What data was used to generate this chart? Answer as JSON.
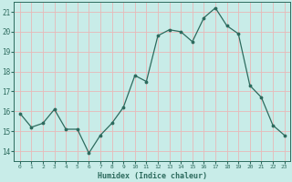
{
  "x": [
    0,
    1,
    2,
    3,
    4,
    5,
    6,
    7,
    8,
    9,
    10,
    11,
    12,
    13,
    14,
    15,
    16,
    17,
    18,
    19,
    20,
    21,
    22,
    23
  ],
  "y": [
    15.9,
    15.2,
    15.4,
    16.1,
    15.1,
    15.1,
    13.9,
    14.8,
    15.4,
    16.2,
    17.8,
    17.5,
    19.8,
    20.1,
    20.0,
    19.5,
    20.7,
    21.2,
    20.3,
    19.9,
    17.3,
    16.7,
    15.3,
    14.8
  ],
  "line_color": "#2d6b5e",
  "marker_color": "#2d6b5e",
  "bg_color": "#c8ece8",
  "grid_color_major": "#e8b8b8",
  "grid_color_minor": "#ffffff",
  "tick_label_color": "#2d6b5e",
  "xlabel": "Humidex (Indice chaleur)",
  "xlabel_color": "#2d6b5e",
  "ylim": [
    13.5,
    21.5
  ],
  "yticks": [
    14,
    15,
    16,
    17,
    18,
    19,
    20,
    21
  ],
  "xlim": [
    -0.5,
    23.5
  ],
  "xticks": [
    0,
    1,
    2,
    3,
    4,
    5,
    6,
    7,
    8,
    9,
    10,
    11,
    12,
    13,
    14,
    15,
    16,
    17,
    18,
    19,
    20,
    21,
    22,
    23
  ],
  "xtick_labels": [
    "0",
    "1",
    "2",
    "3",
    "4",
    "5",
    "6",
    "7",
    "8",
    "9",
    "10",
    "11",
    "12",
    "13",
    "14",
    "15",
    "16",
    "17",
    "18",
    "19",
    "20",
    "21",
    "22",
    "23"
  ]
}
